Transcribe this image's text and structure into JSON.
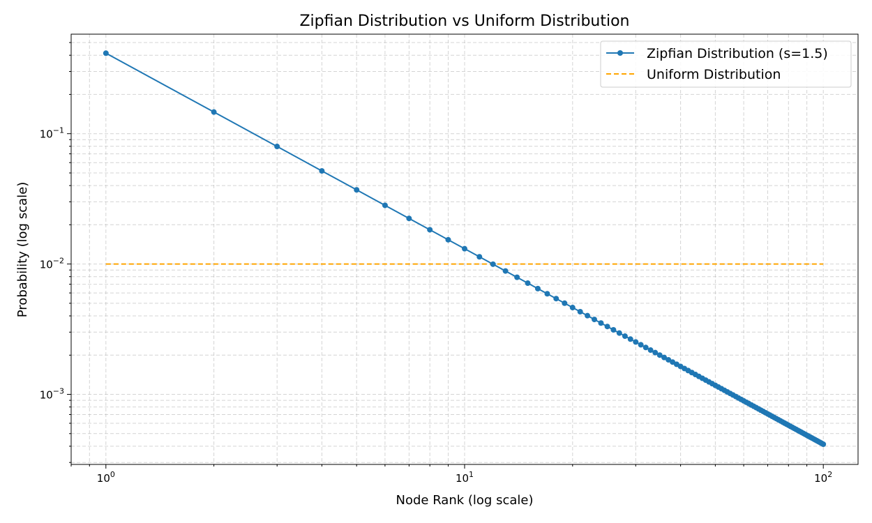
{
  "chart_data": {
    "type": "line",
    "title": "Zipfian Distribution vs Uniform Distribution",
    "xlabel": "Node Rank (log scale)",
    "ylabel": "Probability (log scale)",
    "xscale": "log",
    "yscale": "log",
    "xlim": [
      0.8,
      125
    ],
    "ylim": [
      0.00029,
      0.58
    ],
    "grid": true,
    "legend_position": "top-right",
    "x_ticks": [
      {
        "base": "10",
        "exp": "0",
        "value": 1
      },
      {
        "base": "10",
        "exp": "1",
        "value": 10
      },
      {
        "base": "10",
        "exp": "2",
        "value": 100
      }
    ],
    "y_ticks": [
      {
        "base": "10",
        "exp": "−3",
        "value": 0.001
      },
      {
        "base": "10",
        "exp": "−2",
        "value": 0.01
      },
      {
        "base": "10",
        "exp": "−1",
        "value": 0.1
      }
    ],
    "series": [
      {
        "name": "Zipfian Distribution (s=1.5)",
        "color": "#1f77b4",
        "style": "solid-with-markers",
        "formula": "p(k) = k^-1.5 / sum_{n=1..100} n^-1.5",
        "x_range": [
          1,
          100
        ],
        "exponent": 1.5,
        "y_at_rank_1": 0.4157,
        "y_at_rank_100": 0.000416
      },
      {
        "name": "Uniform Distribution",
        "color": "#ffa500",
        "style": "dashed",
        "x_range": [
          1,
          100
        ],
        "value": 0.01
      }
    ]
  }
}
